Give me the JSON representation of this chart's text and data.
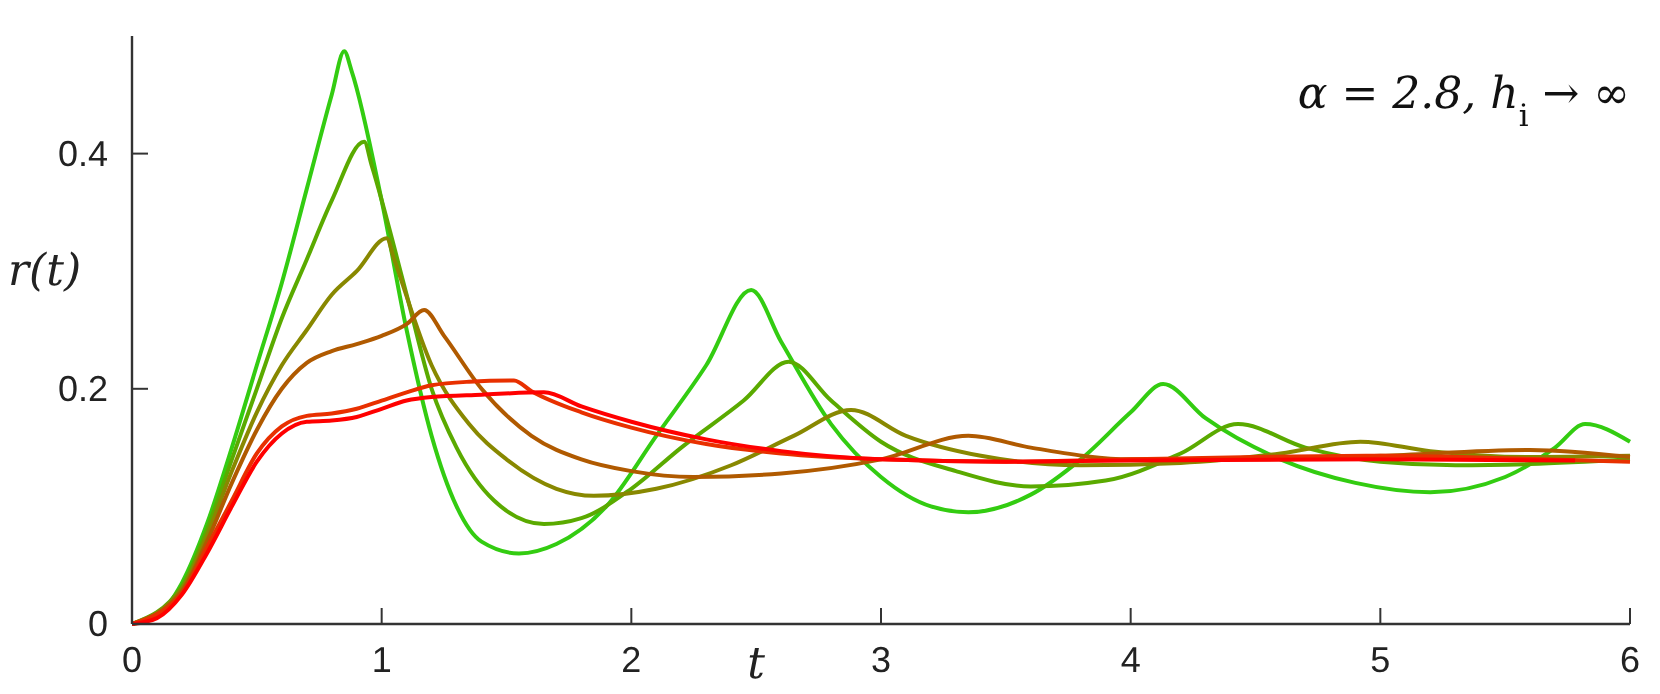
{
  "chart_data": {
    "type": "line",
    "xlabel": "t",
    "ylabel": "r(t)",
    "annotations": [
      "α = 2.8, h$_{i}$ → ∞"
    ],
    "xlim": [
      0,
      6
    ],
    "ylim": [
      0,
      0.5
    ],
    "xticks": [
      0,
      1,
      2,
      3,
      4,
      5,
      6
    ],
    "yticks": [
      0,
      0.2,
      0.4
    ],
    "grid": false,
    "marker": "none",
    "line_style": "solid",
    "series": [
      {
        "color": "#33cc11",
        "x": [
          0,
          0.1,
          0.2,
          0.3,
          0.4,
          0.5,
          0.6,
          0.7,
          0.8,
          0.85,
          0.88,
          1.0,
          1.1,
          1.2,
          1.3,
          1.4,
          1.55,
          1.7,
          1.9,
          2.1,
          2.3,
          2.48,
          2.6,
          2.8,
          3.0,
          3.2,
          3.35,
          3.6,
          3.8,
          4.0,
          4.13,
          4.3,
          4.6,
          4.9,
          5.2,
          5.5,
          5.7,
          5.82,
          6.0
        ],
        "values": [
          0,
          0.007,
          0.035,
          0.085,
          0.15,
          0.22,
          0.29,
          0.37,
          0.45,
          0.487,
          0.47,
          0.36,
          0.25,
          0.16,
          0.1,
          0.07,
          0.06,
          0.068,
          0.1,
          0.16,
          0.22,
          0.284,
          0.24,
          0.17,
          0.125,
          0.1,
          0.095,
          0.11,
          0.14,
          0.18,
          0.204,
          0.175,
          0.14,
          0.12,
          0.112,
          0.125,
          0.15,
          0.17,
          0.155
        ]
      },
      {
        "color": "#5aaa00",
        "x": [
          0,
          0.2,
          0.3,
          0.4,
          0.5,
          0.6,
          0.7,
          0.8,
          0.93,
          0.96,
          1.1,
          1.2,
          1.3,
          1.45,
          1.65,
          1.8,
          2.0,
          2.2,
          2.45,
          2.63,
          2.8,
          3.0,
          3.3,
          3.6,
          3.9,
          4.2,
          4.43,
          4.7,
          5.0,
          5.3,
          5.6,
          6.0
        ],
        "values": [
          0,
          0.032,
          0.08,
          0.14,
          0.2,
          0.26,
          0.31,
          0.36,
          0.41,
          0.39,
          0.28,
          0.2,
          0.15,
          0.105,
          0.085,
          0.09,
          0.115,
          0.15,
          0.19,
          0.223,
          0.19,
          0.155,
          0.13,
          0.117,
          0.122,
          0.145,
          0.17,
          0.15,
          0.138,
          0.135,
          0.136,
          0.14
        ]
      },
      {
        "color": "#888800",
        "x": [
          0,
          0.2,
          0.3,
          0.4,
          0.5,
          0.6,
          0.7,
          0.8,
          0.9,
          1.02,
          1.05,
          1.2,
          1.35,
          1.5,
          1.7,
          1.85,
          2.1,
          2.4,
          2.65,
          2.88,
          3.1,
          3.4,
          3.8,
          4.2,
          4.6,
          4.92,
          5.2,
          5.6,
          6.0
        ],
        "values": [
          0,
          0.03,
          0.075,
          0.13,
          0.18,
          0.22,
          0.25,
          0.28,
          0.3,
          0.328,
          0.31,
          0.22,
          0.17,
          0.14,
          0.115,
          0.109,
          0.115,
          0.135,
          0.16,
          0.182,
          0.16,
          0.143,
          0.135,
          0.137,
          0.145,
          0.155,
          0.147,
          0.142,
          0.143
        ]
      },
      {
        "color": "#b05a00",
        "x": [
          0,
          0.2,
          0.3,
          0.4,
          0.5,
          0.6,
          0.7,
          0.8,
          0.9,
          1.0,
          1.1,
          1.17,
          1.25,
          1.4,
          1.6,
          1.8,
          2.0,
          2.25,
          2.6,
          3.0,
          3.35,
          3.6,
          4.0,
          4.5,
          5.0,
          5.6,
          6.0
        ],
        "values": [
          0,
          0.028,
          0.07,
          0.12,
          0.165,
          0.2,
          0.222,
          0.232,
          0.238,
          0.245,
          0.255,
          0.267,
          0.245,
          0.2,
          0.16,
          0.14,
          0.13,
          0.125,
          0.128,
          0.14,
          0.16,
          0.15,
          0.14,
          0.14,
          0.143,
          0.148,
          0.142
        ]
      },
      {
        "color": "#e83000",
        "x": [
          0,
          0.2,
          0.3,
          0.4,
          0.5,
          0.6,
          0.7,
          0.8,
          0.9,
          1.0,
          1.1,
          1.2,
          1.35,
          1.53,
          1.6,
          1.8,
          2.0,
          2.3,
          2.6,
          3.0,
          3.5,
          4.0,
          4.5,
          5.0,
          5.5,
          6.0
        ],
        "values": [
          0,
          0.026,
          0.065,
          0.105,
          0.145,
          0.168,
          0.177,
          0.179,
          0.183,
          0.19,
          0.197,
          0.203,
          0.206,
          0.207,
          0.198,
          0.18,
          0.167,
          0.153,
          0.145,
          0.14,
          0.138,
          0.14,
          0.142,
          0.143,
          0.141,
          0.138
        ]
      },
      {
        "color": "#ff0000",
        "x": [
          0,
          0.1,
          0.2,
          0.3,
          0.4,
          0.5,
          0.6,
          0.7,
          0.8,
          0.9,
          1.0,
          1.1,
          1.2,
          1.4,
          1.65,
          1.8,
          2.0,
          2.3,
          2.6,
          3.0,
          3.5,
          4.0,
          5.0,
          5.78
        ],
        "values": [
          0,
          0.005,
          0.025,
          0.06,
          0.1,
          0.138,
          0.162,
          0.172,
          0.173,
          0.176,
          0.183,
          0.19,
          0.193,
          0.195,
          0.197,
          0.185,
          0.172,
          0.157,
          0.147,
          0.14,
          0.138,
          0.139,
          0.14,
          0.139
        ]
      }
    ]
  }
}
